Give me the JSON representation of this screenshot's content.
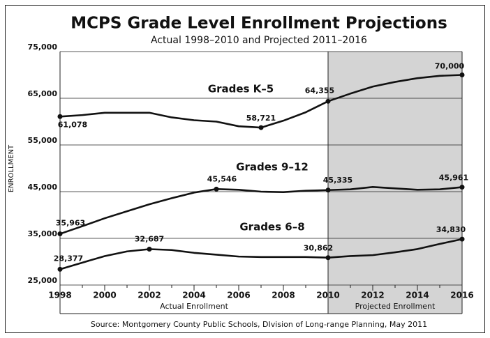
{
  "chart_data": {
    "type": "line",
    "title": "MCPS Grade Level Enrollment Projections",
    "subtitle": "Actual 1998–2010 and Projected 2011–2016",
    "ylabel": "ENROLLMENT",
    "source": "Source: Montgomery County Public Schools, DIvision of Long-range Planning, May 2011",
    "x": [
      1998,
      1999,
      2000,
      2001,
      2002,
      2003,
      2004,
      2005,
      2006,
      2007,
      2008,
      2009,
      2010,
      2011,
      2012,
      2013,
      2014,
      2015,
      2016
    ],
    "series": [
      {
        "name": "Grades K–5",
        "color": "#111111",
        "values": [
          61078,
          61400,
          61900,
          61900,
          61900,
          60900,
          60300,
          60000,
          59000,
          58721,
          60200,
          62000,
          64355,
          66000,
          67500,
          68500,
          69300,
          69800,
          70000
        ],
        "value_labels": [
          "61,078",
          null,
          null,
          null,
          null,
          null,
          null,
          null,
          null,
          "58,721",
          null,
          null,
          "64,355",
          null,
          null,
          null,
          null,
          null,
          "70,000"
        ]
      },
      {
        "name": "Grades 9–12",
        "color": "#111111",
        "values": [
          35963,
          37600,
          39300,
          40800,
          42300,
          43600,
          44800,
          45546,
          45400,
          45000,
          44900,
          45200,
          45335,
          45500,
          46000,
          45700,
          45400,
          45500,
          45961
        ],
        "value_labels": [
          "35,963",
          null,
          null,
          null,
          null,
          null,
          null,
          "45,546",
          null,
          null,
          null,
          null,
          "45,335",
          null,
          null,
          null,
          null,
          null,
          "45,961"
        ]
      },
      {
        "name": "Grades 6–8",
        "color": "#111111",
        "values": [
          28377,
          29800,
          31200,
          32200,
          32687,
          32500,
          31900,
          31500,
          31100,
          31000,
          31000,
          31000,
          30862,
          31200,
          31400,
          32000,
          32700,
          33800,
          34830
        ],
        "value_labels": [
          "28,377",
          null,
          null,
          null,
          "32,687",
          null,
          null,
          null,
          null,
          null,
          null,
          null,
          "30,862",
          null,
          null,
          null,
          null,
          null,
          "34,830"
        ]
      }
    ],
    "xlim": [
      1998,
      2016
    ],
    "xticks": [
      1998,
      2000,
      2002,
      2004,
      2006,
      2008,
      2010,
      2012,
      2014,
      2016
    ],
    "ylim": [
      25000,
      75000
    ],
    "yticks": [
      {
        "value": 25000,
        "label": "25,000"
      },
      {
        "value": 35000,
        "label": "35,000"
      },
      {
        "value": 45000,
        "label": "45,000"
      },
      {
        "value": 55000,
        "label": "55,000"
      },
      {
        "value": 65000,
        "label": "65,000"
      },
      {
        "value": 75000,
        "label": "75,000"
      }
    ],
    "grid": true,
    "projected_range": [
      2010,
      2016
    ],
    "projected_color": "#d4d4d4",
    "region_labels": [
      "Actual Enrollment",
      "Projected Enrollment"
    ]
  }
}
